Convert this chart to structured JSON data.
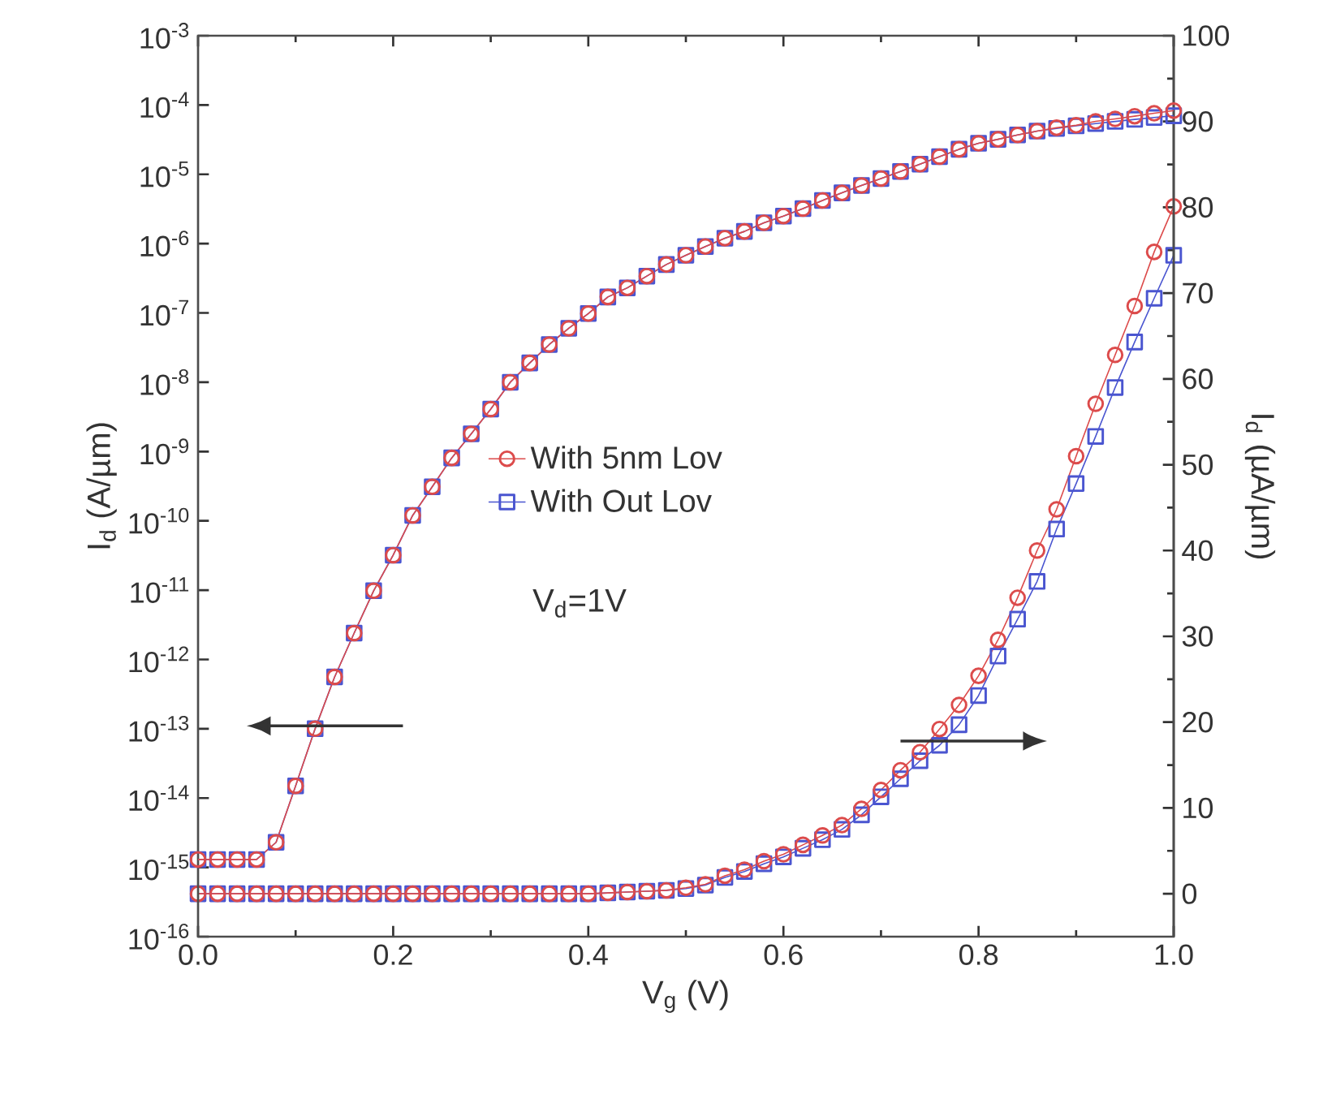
{
  "chart_data": {
    "type": "line",
    "xlabel": "V$_{g}$ (V)",
    "ylabel": "I$_{d}$ (A/µm)",
    "y2label": "I$_{d}$ (µA/µm)",
    "annotations": [
      "V$_{d}$=1V"
    ],
    "x": [
      0,
      0.02,
      0.04,
      0.06,
      0.08,
      0.1,
      0.12,
      0.14,
      0.16,
      0.18,
      0.2,
      0.22,
      0.24,
      0.26,
      0.28,
      0.3,
      0.32,
      0.34,
      0.36,
      0.38,
      0.4,
      0.42,
      0.44,
      0.46,
      0.48,
      0.5,
      0.52,
      0.54,
      0.56,
      0.58,
      0.6,
      0.62,
      0.64,
      0.66,
      0.68,
      0.7,
      0.72,
      0.74,
      0.76,
      0.78,
      0.8,
      0.82,
      0.84,
      0.86,
      0.88,
      0.9,
      0.92,
      0.94,
      0.96,
      0.98,
      1.0
    ],
    "series": [
      {
        "name": "With Out Lov",
        "color": "#4a55d0",
        "marker": "square",
        "values": [
          1.3e-15,
          1.3e-15,
          1.3e-15,
          1.3e-15,
          2.3e-15,
          1.5e-14,
          1e-13,
          5.6e-13,
          2.4e-12,
          9.8e-12,
          3.2e-11,
          1.2e-10,
          3.1e-10,
          8.1e-10,
          1.8e-09,
          4.1e-09,
          1e-08,
          1.9e-08,
          3.5e-08,
          6e-08,
          9.8e-08,
          1.7e-07,
          2.3e-07,
          3.4e-07,
          5e-07,
          6.8e-07,
          9.1e-07,
          1.2e-06,
          1.5e-06,
          2e-06,
          2.5e-06,
          3.2e-06,
          4.2e-06,
          5.4e-06,
          6.9e-06,
          8.7e-06,
          1.1e-05,
          1.4e-05,
          1.8e-05,
          2.3e-05,
          2.8e-05,
          3.2e-05,
          3.7e-05,
          4.2e-05,
          4.6e-05,
          5e-05,
          5.4e-05,
          5.8e-05,
          6.2e-05,
          6.6e-05,
          7e-05
        ]
      },
      {
        "name": "With 5nm Lov",
        "color": "#dc4b4b",
        "marker": "circle",
        "values": [
          1.3e-15,
          1.3e-15,
          1.3e-15,
          1.3e-15,
          2.3e-15,
          1.5e-14,
          1e-13,
          5.6e-13,
          2.4e-12,
          9.8e-12,
          3.2e-11,
          1.2e-10,
          3.1e-10,
          8.1e-10,
          1.8e-09,
          4.1e-09,
          1e-08,
          1.9e-08,
          3.5e-08,
          6e-08,
          9.8e-08,
          1.7e-07,
          2.3e-07,
          3.4e-07,
          5e-07,
          6.8e-07,
          9.1e-07,
          1.2e-06,
          1.5e-06,
          2e-06,
          2.5e-06,
          3.2e-06,
          4.2e-06,
          5.4e-06,
          6.9e-06,
          8.7e-06,
          1.1e-05,
          1.4e-05,
          1.8e-05,
          2.3e-05,
          2.8e-05,
          3.2e-05,
          3.7e-05,
          4.2e-05,
          4.7e-05,
          5.1e-05,
          5.8e-05,
          6.3e-05,
          6.9e-05,
          7.6e-05,
          8.3e-05
        ]
      },
      {
        "color": "#4a55d0",
        "marker": "square",
        "axis": "y2",
        "values": [
          0,
          0,
          0,
          0,
          0,
          0,
          0,
          0,
          0,
          0,
          0,
          0,
          0,
          0,
          0,
          0,
          0,
          0,
          0,
          0,
          0,
          0.1,
          0.2,
          0.3,
          0.4,
          0.6,
          1.0,
          1.9,
          2.6,
          3.5,
          4.3,
          5.3,
          6.3,
          7.5,
          9.2,
          11.3,
          13.4,
          15.5,
          17.3,
          19.7,
          23.1,
          27.7,
          32.0,
          36.4,
          42.5,
          47.8,
          53.3,
          59.0,
          64.3,
          69.4,
          74.4
        ]
      },
      {
        "color": "#dc4b4b",
        "marker": "circle",
        "axis": "y2",
        "values": [
          0,
          0,
          0,
          0,
          0,
          0,
          0,
          0,
          0,
          0,
          0,
          0,
          0,
          0,
          0,
          0,
          0,
          0,
          0,
          0,
          0,
          0.1,
          0.2,
          0.3,
          0.4,
          0.7,
          1.1,
          2.1,
          2.8,
          3.8,
          4.6,
          5.7,
          6.8,
          8.0,
          9.9,
          12.1,
          14.4,
          16.5,
          19.2,
          22.0,
          25.4,
          29.6,
          34.5,
          40.0,
          44.8,
          51,
          57.1,
          62.8,
          68.5,
          74.8,
          80.1
        ]
      }
    ],
    "log": "y",
    "legend": "center",
    "line_style": "solid",
    "xlim": [
      0,
      1
    ],
    "xticks": [
      {
        "value": 0,
        "label": "0.0"
      },
      {
        "value": 0.2,
        "label": "0.2"
      },
      {
        "value": 0.4,
        "label": "0.4"
      },
      {
        "value": 0.6,
        "label": "0.6"
      },
      {
        "value": 0.8,
        "label": "0.8"
      },
      {
        "value": 1,
        "label": "1.0"
      }
    ],
    "ylim": [
      1e-16,
      0.001
    ],
    "yticks": [
      {
        "value": 1e-16,
        "label": "10$^{-16}$"
      },
      {
        "value": 1e-15,
        "label": "10$^{-15}$"
      },
      {
        "value": 1e-14,
        "label": "10$^{-14}$"
      },
      {
        "value": 1e-13,
        "label": "10$^{-13}$"
      },
      {
        "value": 1e-12,
        "label": "10$^{-12}$"
      },
      {
        "value": 1e-11,
        "label": "10$^{-11}$"
      },
      {
        "value": 1e-10,
        "label": "10$^{-10}$"
      },
      {
        "value": 1e-09,
        "label": "10$^{-9}$"
      },
      {
        "value": 1e-08,
        "label": "10$^{-8}$"
      },
      {
        "value": 1e-07,
        "label": "10$^{-7}$"
      },
      {
        "value": 1e-06,
        "label": "10$^{-6}$"
      },
      {
        "value": 1e-05,
        "label": "10$^{-5}$"
      },
      {
        "value": 0.0001,
        "label": "10$^{-4}$"
      },
      {
        "value": 0.001,
        "label": "10$^{-3}$"
      }
    ],
    "y2lim": [
      -5,
      100
    ],
    "y2ticks": [
      0,
      10,
      20,
      30,
      40,
      50,
      60,
      70,
      80,
      90,
      100
    ]
  }
}
